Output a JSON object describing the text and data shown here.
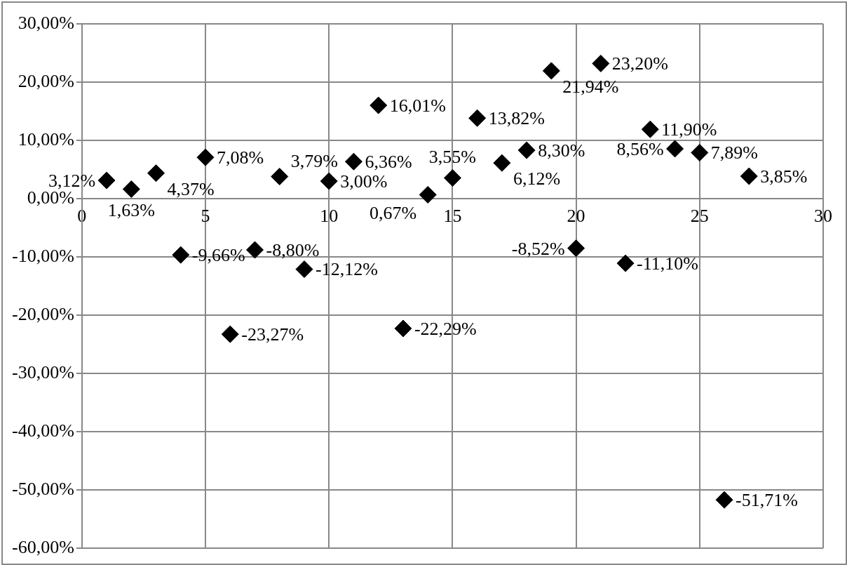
{
  "chart_data": {
    "type": "scatter",
    "x": [
      1,
      2,
      3,
      4,
      5,
      6,
      7,
      8,
      9,
      10,
      11,
      12,
      13,
      14,
      15,
      16,
      17,
      18,
      19,
      20,
      21,
      22,
      23,
      24,
      25,
      26,
      27
    ],
    "values": [
      3.12,
      1.63,
      4.37,
      -9.66,
      7.08,
      -23.27,
      -8.8,
      3.79,
      -12.12,
      3.0,
      6.36,
      16.01,
      -22.29,
      0.67,
      3.55,
      13.82,
      6.12,
      8.3,
      21.94,
      -8.52,
      23.2,
      -11.1,
      11.9,
      8.56,
      7.89,
      -51.71,
      3.85
    ],
    "value_labels": [
      "3,12%",
      "1,63%",
      "4,37%",
      "-9,66%",
      "7,08%",
      "-23,27%",
      "-8,80%",
      "3,79%",
      "-12,12%",
      "3,00%",
      "6,36%",
      "16,01%",
      "-22,29%",
      "0,67%",
      "3,55%",
      "13,82%",
      "6,12%",
      "8,30%",
      "21,94%",
      "-8,52%",
      "23,20%",
      "-11,10%",
      "11,90%",
      "8,56%",
      "7,89%",
      "-51,71%",
      "3,85%"
    ],
    "color": "#000000",
    "marker": "diamond",
    "grid": true,
    "legend": false,
    "xlim": [
      0,
      30
    ],
    "xticks": [
      0,
      5,
      10,
      15,
      20,
      25,
      30
    ],
    "ylim": [
      -60,
      30
    ],
    "yticks": [
      {
        "value": -60,
        "label": "-60,00%"
      },
      {
        "value": -50,
        "label": "-50,00%"
      },
      {
        "value": -40,
        "label": "-40,00%"
      },
      {
        "value": -30,
        "label": "-30,00%"
      },
      {
        "value": -20,
        "label": "-20,00%"
      },
      {
        "value": -10,
        "label": "-10,00%"
      },
      {
        "value": 0,
        "label": "0,00%"
      },
      {
        "value": 10,
        "label": "10,00%"
      },
      {
        "value": 20,
        "label": "20,00%"
      },
      {
        "value": 30,
        "label": "30,00%"
      }
    ]
  }
}
